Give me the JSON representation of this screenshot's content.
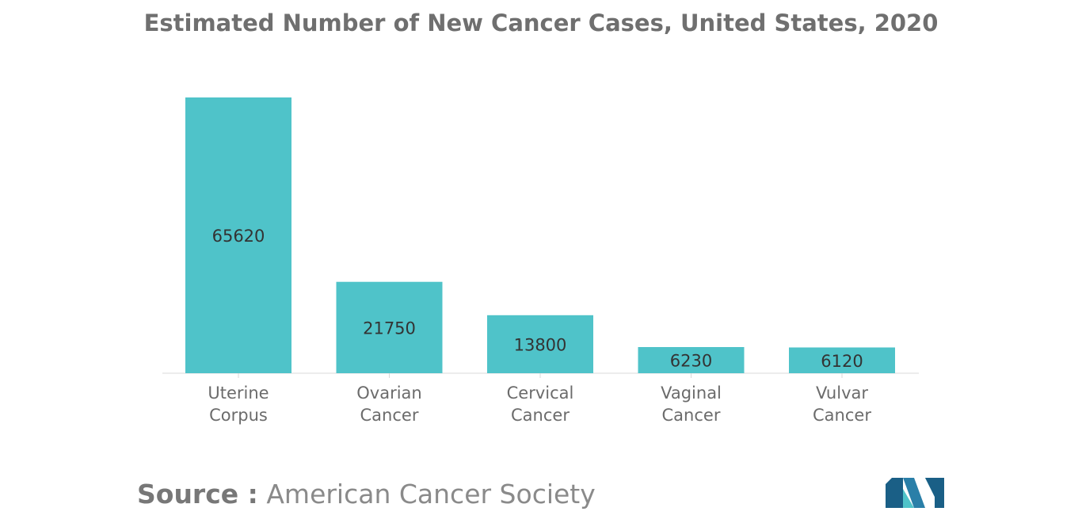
{
  "chart_data": {
    "type": "bar",
    "title": "Estimated Number of New Cancer Cases, United States, 2020",
    "categories": [
      [
        "Uterine",
        "Corpus"
      ],
      [
        "Ovarian",
        "Cancer"
      ],
      [
        "Cervical",
        "Cancer"
      ],
      [
        "Vaginal",
        "Cancer"
      ],
      [
        "Vulvar",
        "Cancer"
      ]
    ],
    "values": [
      65620,
      21750,
      13800,
      6230,
      6120
    ],
    "data_labels": [
      "65620",
      "21750",
      "13800",
      "6230",
      "6120"
    ],
    "xlabel": "",
    "ylabel": "",
    "ylim": [
      0,
      65620
    ],
    "grid": false,
    "legend": "none"
  },
  "source": {
    "label": "Source :",
    "value": "American Cancer Society"
  },
  "colors": {
    "bar": "#4fc3c9",
    "title": "#6f6f6f",
    "axis_text": "#6b6b6b",
    "data_label": "#333333",
    "axis_line": "#d9d9d9",
    "logo_dark": "#1a5f86",
    "logo_light": "#4fc3c9"
  },
  "logo": {
    "icon": "mordor-logo-icon"
  }
}
